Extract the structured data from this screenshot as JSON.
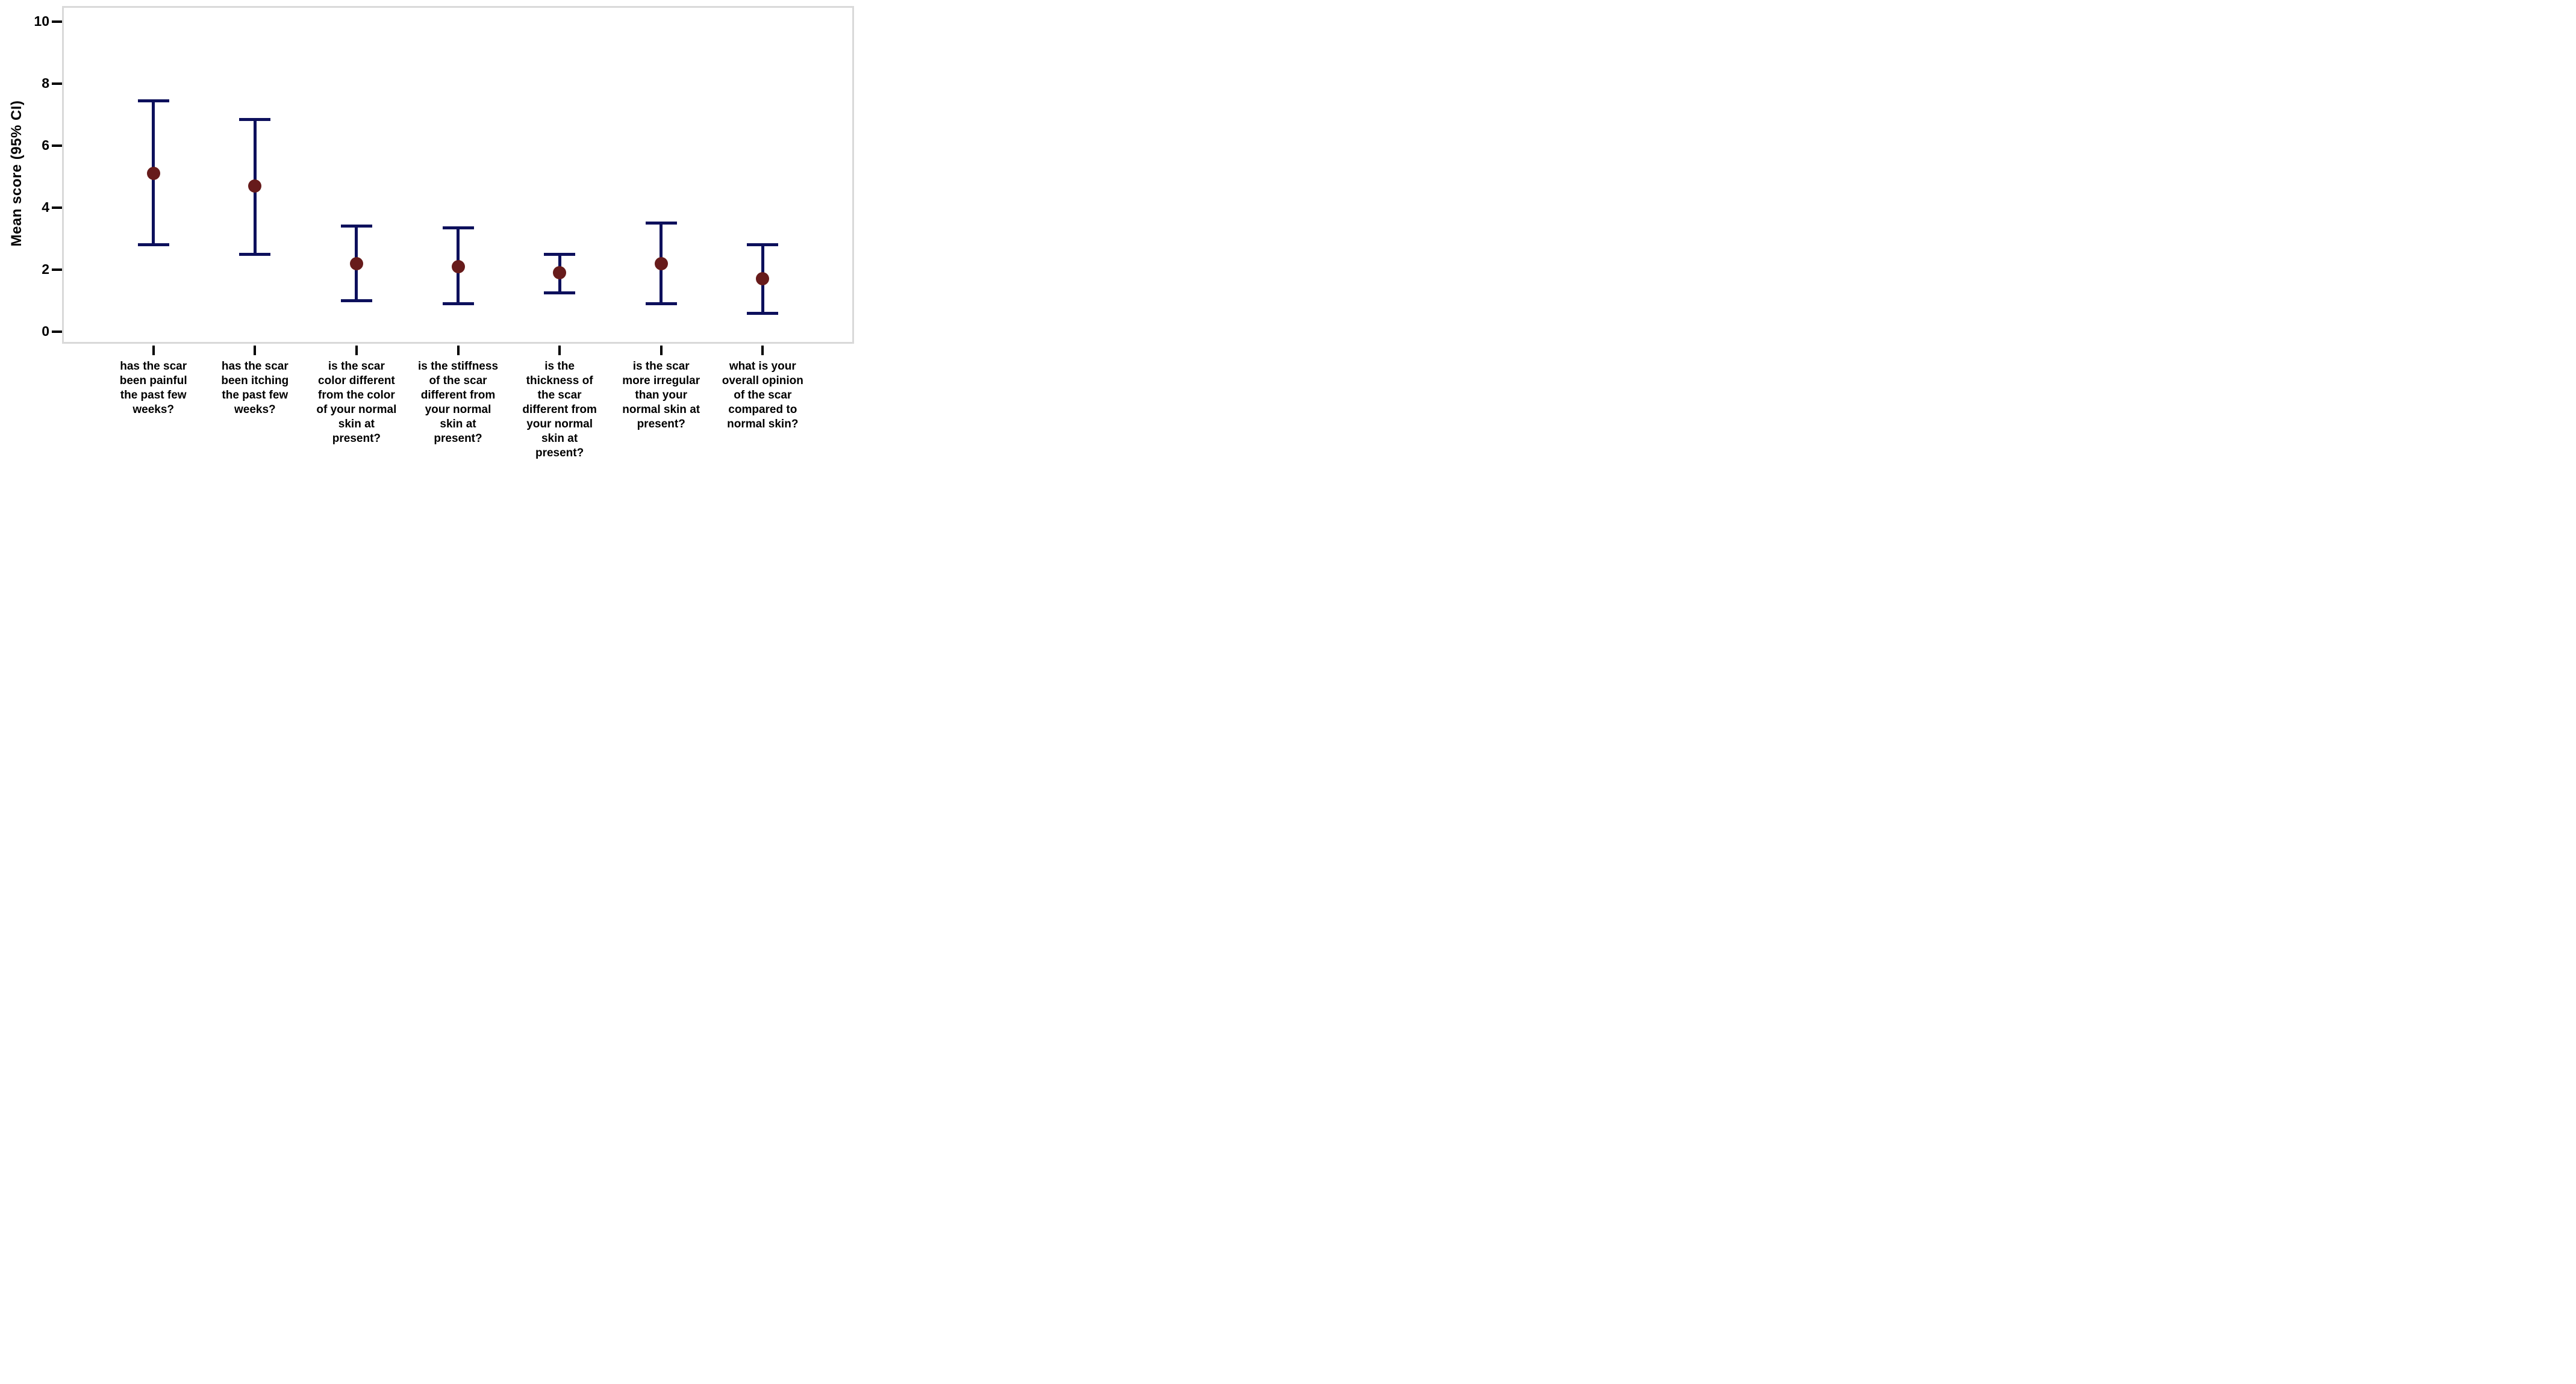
{
  "chart_data": {
    "type": "scatter",
    "subtype": "point-with-95ci-errorbars",
    "title": "",
    "xlabel": "",
    "ylabel": "Mean score (95% CI)",
    "ylim": [
      -0.4,
      10.5
    ],
    "yticks": [
      0,
      2,
      4,
      6,
      8,
      10
    ],
    "grid": false,
    "legend_position": "none",
    "categories": [
      "has the scar\nbeen painful\nthe past few\nweeks?",
      "has the scar\nbeen itching\nthe past few\nweeks?",
      "is the scar\ncolor different\nfrom the color\nof your normal\nskin at\npresent?",
      "is the stiffness\nof the scar\ndifferent from\nyour normal\nskin at\npresent?",
      "is the\nthickness of\nthe scar\ndifferent from\nyour normal\nskin at\npresent?",
      "is the scar\nmore irregular\nthan your\nnormal skin at\npresent?",
      "what is your\noverall opinion\nof the scar\ncompared to\nnormal skin?"
    ],
    "series": [
      {
        "name": "Mean score",
        "values": [
          5.1,
          4.7,
          2.2,
          2.1,
          1.9,
          2.2,
          1.7
        ],
        "ci_low": [
          2.8,
          2.5,
          1.0,
          0.9,
          1.25,
          0.9,
          0.6
        ],
        "ci_high": [
          7.45,
          6.85,
          3.4,
          3.35,
          2.5,
          3.5,
          2.8
        ]
      }
    ],
    "colors": {
      "point": "#671b1b",
      "error_bar": "#0d105c",
      "frame": "#d9d9d9",
      "text": "#000000",
      "background": "#ffffff"
    }
  }
}
